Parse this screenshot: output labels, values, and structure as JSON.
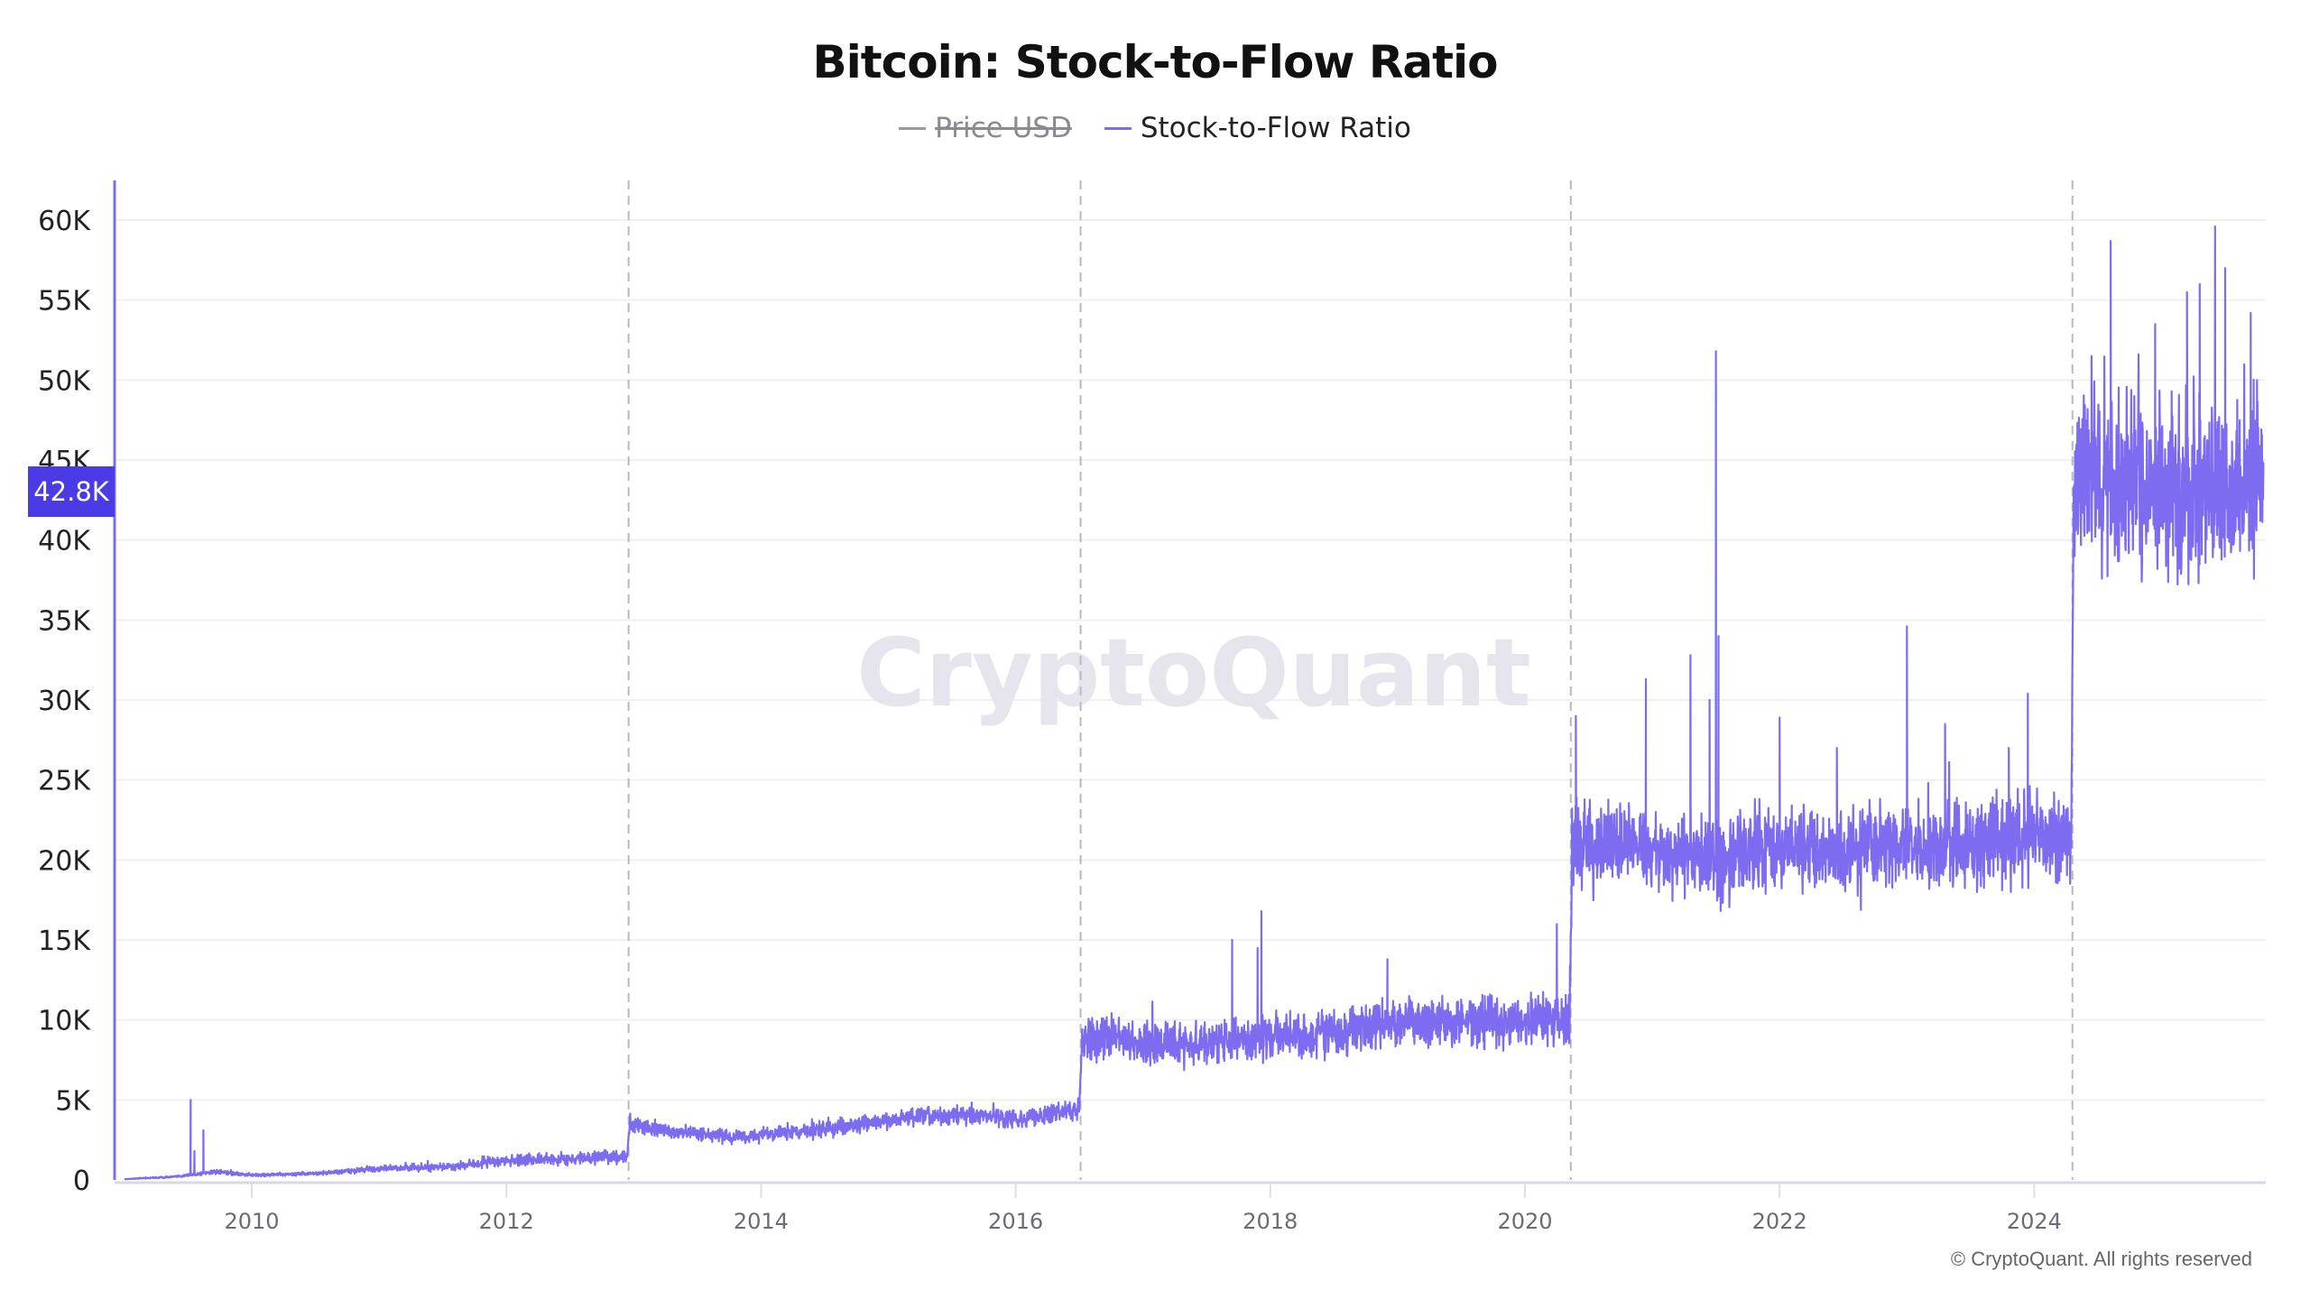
{
  "chart_data": {
    "type": "line",
    "title": "Bitcoin: Stock-to-Flow Ratio",
    "legend": [
      {
        "name": "Price USD",
        "color": "#9a9aa2",
        "hidden": true
      },
      {
        "name": "Stock-to-Flow Ratio",
        "color": "#7b6cf0",
        "hidden": false
      }
    ],
    "legend_position": "top-center",
    "xlabel": "",
    "ylabel": "",
    "xlim": [
      2009.0,
      2025.8
    ],
    "ylim": [
      0,
      62000
    ],
    "x_ticks": [
      "2010",
      "2012",
      "2014",
      "2016",
      "2018",
      "2020",
      "2022",
      "2024"
    ],
    "x_tick_values": [
      2010,
      2012,
      2014,
      2016,
      2018,
      2020,
      2022,
      2024
    ],
    "y_ticks": [
      "0",
      "5K",
      "10K",
      "15K",
      "20K",
      "25K",
      "30K",
      "35K",
      "40K",
      "45K",
      "50K",
      "55K",
      "60K"
    ],
    "y_tick_values": [
      0,
      5000,
      10000,
      15000,
      20000,
      25000,
      30000,
      35000,
      40000,
      45000,
      50000,
      55000,
      60000
    ],
    "grid": true,
    "halving_markers": [
      2012.96,
      2016.51,
      2020.36,
      2024.3
    ],
    "current_value_label": "42.8K",
    "current_value": 42800,
    "series": [
      {
        "name": "Stock-to-Flow Ratio",
        "trend_points": [
          [
            2009.0,
            50
          ],
          [
            2009.4,
            200
          ],
          [
            2009.7,
            500
          ],
          [
            2010.0,
            300
          ],
          [
            2010.5,
            400
          ],
          [
            2011.0,
            700
          ],
          [
            2011.5,
            800
          ],
          [
            2012.0,
            1200
          ],
          [
            2012.5,
            1300
          ],
          [
            2012.95,
            1500
          ],
          [
            2012.97,
            3500
          ],
          [
            2013.3,
            3000
          ],
          [
            2013.8,
            2700
          ],
          [
            2014.3,
            3000
          ],
          [
            2014.8,
            3500
          ],
          [
            2015.3,
            4000
          ],
          [
            2015.8,
            4000
          ],
          [
            2016.0,
            3800
          ],
          [
            2016.5,
            4400
          ],
          [
            2016.52,
            9000
          ],
          [
            2017.0,
            8500
          ],
          [
            2017.5,
            8500
          ],
          [
            2018.0,
            9000
          ],
          [
            2018.5,
            9000
          ],
          [
            2019.0,
            10000
          ],
          [
            2019.5,
            9800
          ],
          [
            2020.0,
            10000
          ],
          [
            2020.35,
            10000
          ],
          [
            2020.37,
            21000
          ],
          [
            2021.0,
            20500
          ],
          [
            2021.5,
            20000
          ],
          [
            2022.0,
            21000
          ],
          [
            2022.5,
            20500
          ],
          [
            2023.0,
            21000
          ],
          [
            2023.5,
            21000
          ],
          [
            2024.0,
            21500
          ],
          [
            2024.29,
            21000
          ],
          [
            2024.31,
            44000
          ],
          [
            2025.0,
            43500
          ],
          [
            2025.8,
            43000
          ]
        ],
        "peaks": [
          [
            2009.52,
            5000
          ],
          [
            2009.55,
            1800
          ],
          [
            2009.62,
            3100
          ],
          [
            2017.7,
            15000
          ],
          [
            2017.9,
            14500
          ],
          [
            2017.93,
            16800
          ],
          [
            2018.92,
            13800
          ],
          [
            2020.25,
            16000
          ],
          [
            2020.4,
            29000
          ],
          [
            2020.95,
            31300
          ],
          [
            2021.3,
            32800
          ],
          [
            2021.45,
            30000
          ],
          [
            2021.5,
            51800
          ],
          [
            2021.52,
            34000
          ],
          [
            2022.0,
            28900
          ],
          [
            2022.45,
            27000
          ],
          [
            2023.0,
            34600
          ],
          [
            2023.3,
            28500
          ],
          [
            2023.8,
            27000
          ],
          [
            2023.95,
            30400
          ],
          [
            2024.45,
            51500
          ],
          [
            2024.6,
            58700
          ],
          [
            2024.95,
            53500
          ],
          [
            2025.2,
            55500
          ],
          [
            2025.3,
            56000
          ],
          [
            2025.42,
            59600
          ],
          [
            2025.5,
            57000
          ],
          [
            2025.7,
            54200
          ],
          [
            2025.75,
            50000
          ]
        ],
        "volatility_regimes": [
          [
            2009.0,
            2012.96,
            0.22
          ],
          [
            2012.96,
            2016.51,
            0.12
          ],
          [
            2016.51,
            2020.36,
            0.12
          ],
          [
            2020.36,
            2024.3,
            0.1
          ],
          [
            2024.3,
            2025.8,
            0.1
          ]
        ]
      }
    ]
  },
  "watermark": "CryptoQuant",
  "copyright": "© CryptoQuant. All rights reserved"
}
